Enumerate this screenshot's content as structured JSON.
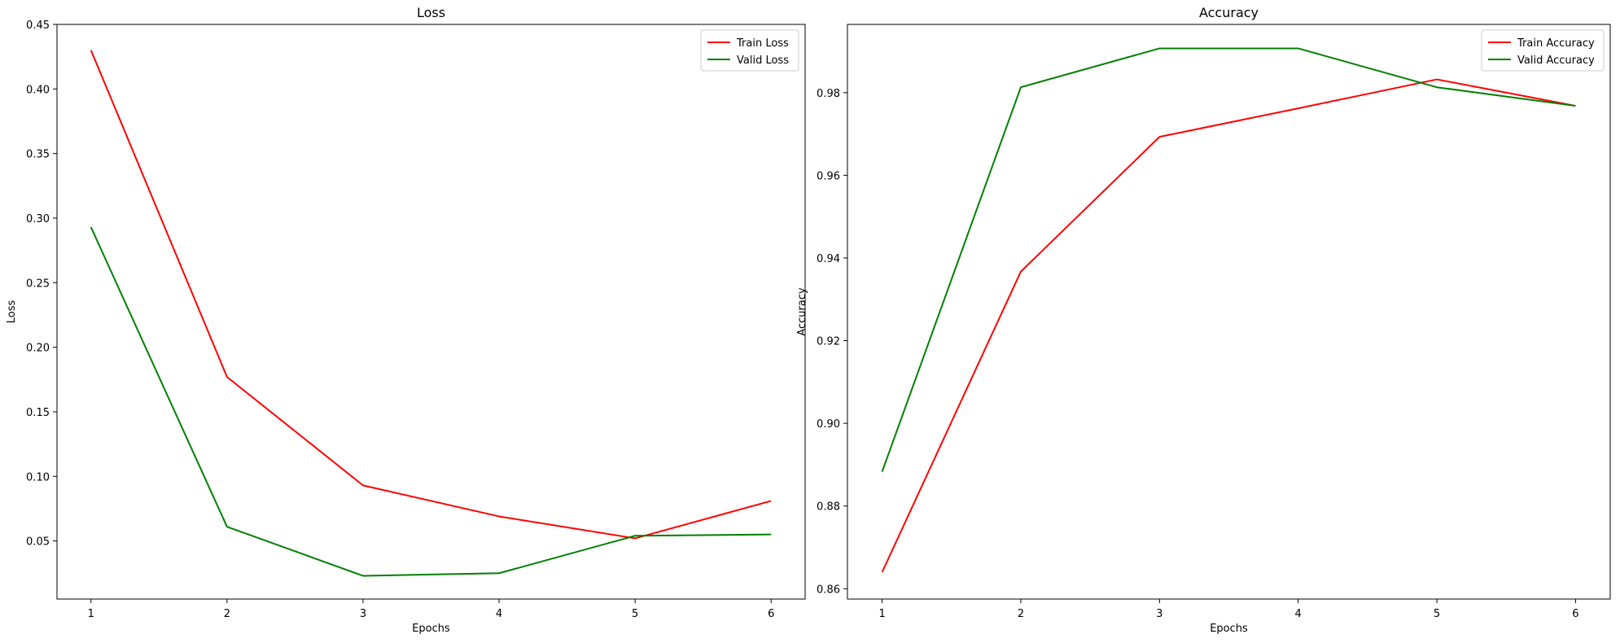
{
  "chart_data": [
    {
      "type": "line",
      "title": "Loss",
      "xlabel": "Epochs",
      "ylabel": "Loss",
      "x": [
        1,
        2,
        3,
        4,
        5,
        6
      ],
      "xticks": [
        "1",
        "2",
        "3",
        "4",
        "5",
        "6"
      ],
      "xlim": [
        0.75,
        6.25
      ],
      "ylim": [
        0.005,
        0.45
      ],
      "yticks": [
        "0.05",
        "0.10",
        "0.15",
        "0.20",
        "0.25",
        "0.30",
        "0.35",
        "0.40",
        "0.45"
      ],
      "grid": false,
      "legend_position": "top-right",
      "series": [
        {
          "name": "Train Loss",
          "color": "#ff0000",
          "values": [
            0.43,
            0.177,
            0.093,
            0.069,
            0.052,
            0.081
          ]
        },
        {
          "name": "Valid Loss",
          "color": "#008000",
          "values": [
            0.293,
            0.061,
            0.023,
            0.025,
            0.054,
            0.055
          ]
        }
      ]
    },
    {
      "type": "line",
      "title": "Accuracy",
      "xlabel": "Epochs",
      "ylabel": "Accuracy",
      "x": [
        1,
        2,
        3,
        4,
        5,
        6
      ],
      "xticks": [
        "1",
        "2",
        "3",
        "4",
        "5",
        "6"
      ],
      "xlim": [
        0.75,
        6.25
      ],
      "ylim": [
        0.8575,
        0.9965
      ],
      "yticks": [
        "0.86",
        "0.88",
        "0.90",
        "0.92",
        "0.94",
        "0.96",
        "0.98"
      ],
      "grid": false,
      "legend_position": "top-right",
      "series": [
        {
          "name": "Train Accuracy",
          "color": "#ff0000",
          "values": [
            0.864,
            0.9367,
            0.9693,
            0.9762,
            0.9832,
            0.9768
          ]
        },
        {
          "name": "Valid Accuracy",
          "color": "#008000",
          "values": [
            0.8883,
            0.9813,
            0.9907,
            0.9907,
            0.9813,
            0.9768
          ]
        }
      ]
    }
  ]
}
